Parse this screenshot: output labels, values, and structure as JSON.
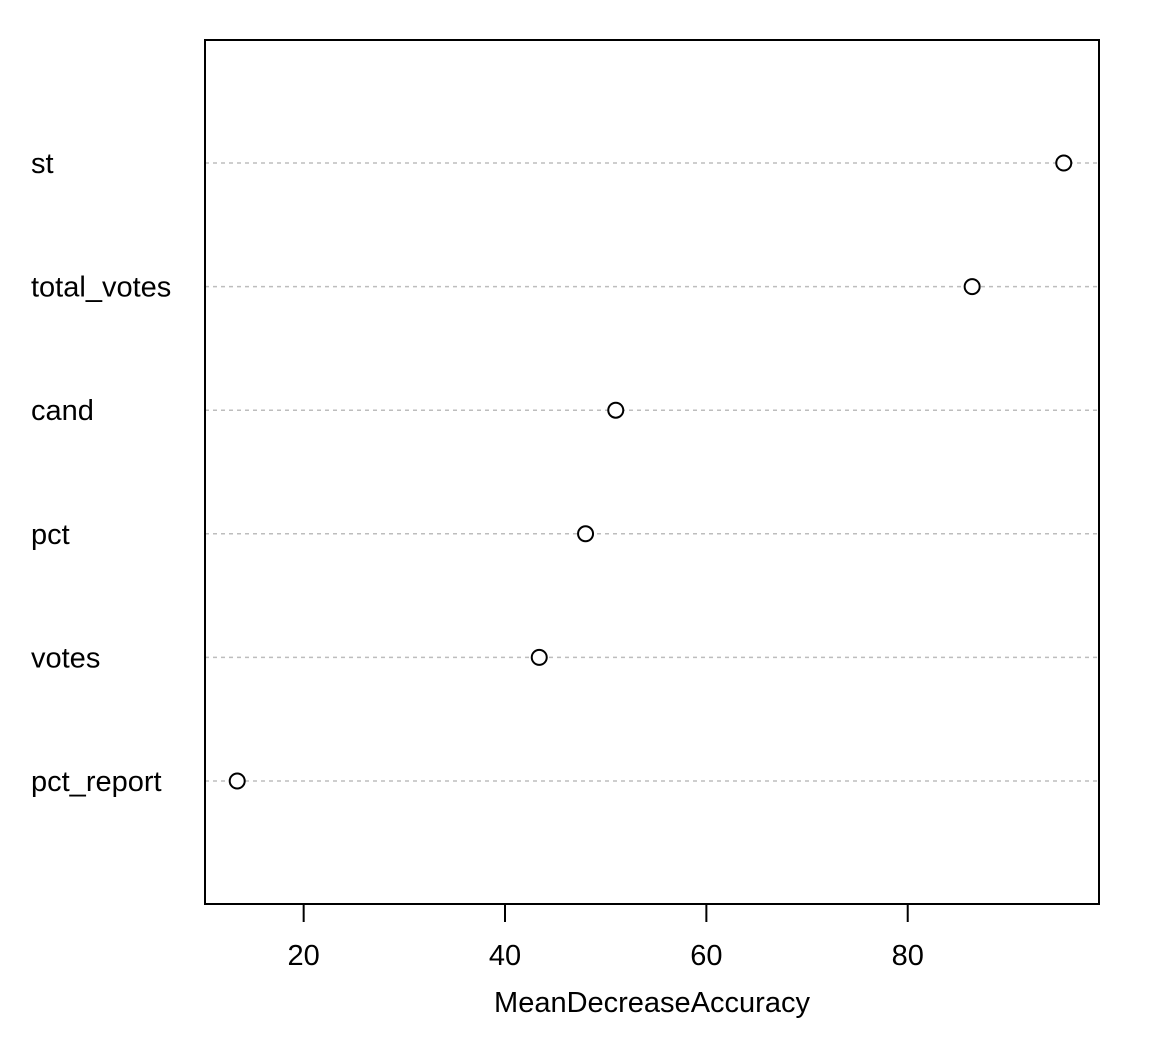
{
  "chart_data": {
    "type": "scatter",
    "subtype": "dotchart",
    "title": "",
    "xlabel": "MeanDecreaseAccuracy",
    "ylabel": "",
    "xlim": [
      10.2,
      99
    ],
    "xticks": [
      20,
      40,
      60,
      80
    ],
    "grid": "dotted horizontal guide per category",
    "categories": [
      "st",
      "total_votes",
      "cand",
      "pct",
      "votes",
      "pct_report"
    ],
    "values": [
      95.5,
      86.4,
      51.0,
      48.0,
      43.4,
      13.4
    ]
  }
}
